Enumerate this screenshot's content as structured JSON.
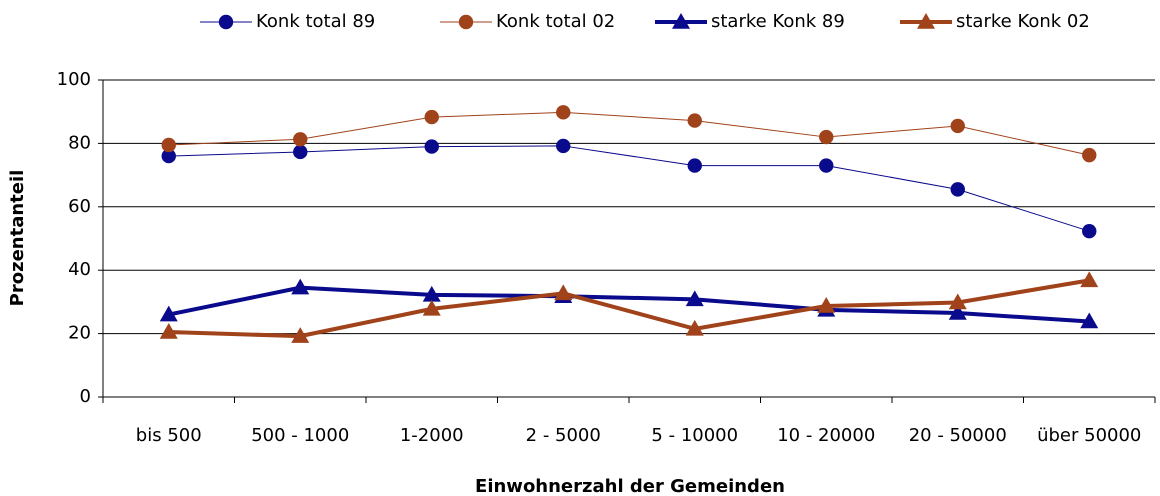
{
  "chart_data": {
    "type": "line",
    "x_label": "Einwohnerzahl der Gemeinden",
    "y_label": "Prozentanteil",
    "categories": [
      "bis 500",
      "500 - 1000",
      "1-2000",
      "2 - 5000",
      "5 - 10000",
      "10 - 20000",
      "20 - 50000",
      "über 50000"
    ],
    "series": [
      {
        "name": "Konk total 89",
        "color": "#0a0a8c",
        "marker": "circle",
        "line_width": 1,
        "values": [
          76,
          77.3,
          79,
          79.2,
          73,
          73,
          65.5,
          52.3
        ]
      },
      {
        "name": "Konk total 02",
        "color": "#a0421a",
        "marker": "circle",
        "line_width": 1,
        "values": [
          79.5,
          81.3,
          88.3,
          89.8,
          87.2,
          82,
          85.5,
          76.3
        ]
      },
      {
        "name": "starke Konk 89",
        "color": "#0a0a8c",
        "marker": "triangle",
        "line_width": 4,
        "values": [
          26,
          34.5,
          32.2,
          31.8,
          30.8,
          27.5,
          26.5,
          23.8
        ]
      },
      {
        "name": "starke Konk 02",
        "color": "#a0421a",
        "marker": "triangle",
        "line_width": 4,
        "values": [
          20.5,
          19.2,
          27.8,
          32.7,
          21.5,
          28.7,
          29.8,
          36.8
        ]
      }
    ],
    "ylim": [
      0,
      100
    ],
    "yticks": [
      0,
      20,
      40,
      60,
      80,
      100
    ],
    "grid": true,
    "legend": "top"
  }
}
